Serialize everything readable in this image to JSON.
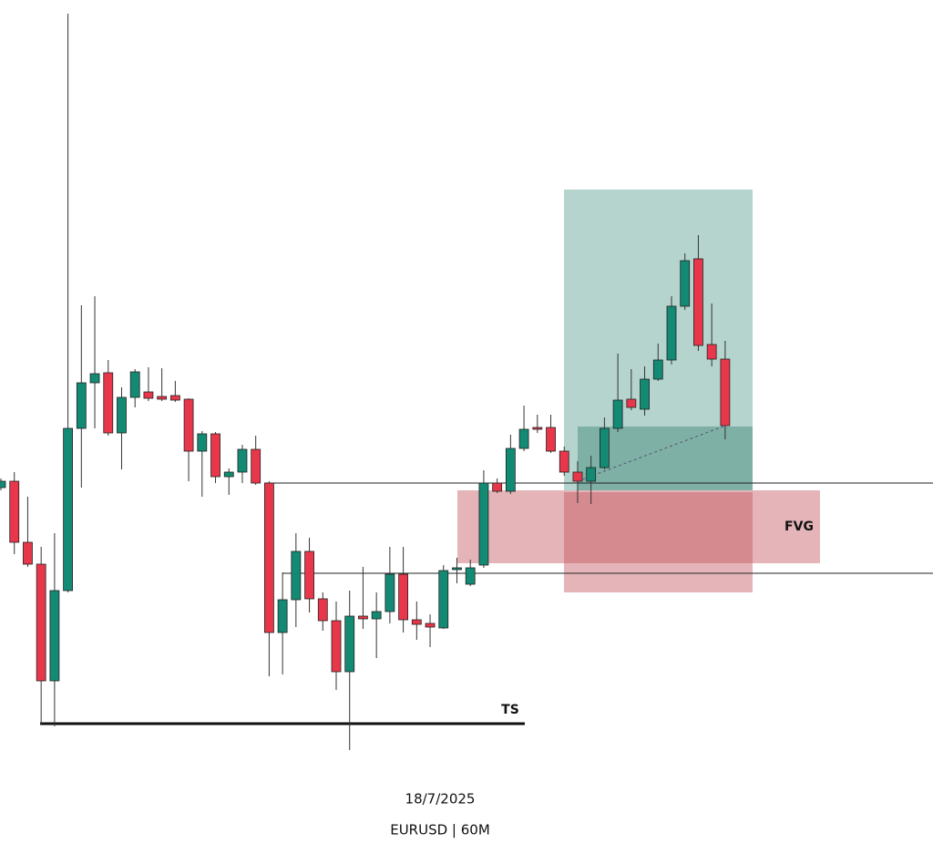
{
  "chart_data": {
    "type": "candlestick",
    "date": "18/7/2025",
    "caption": "EURUSD | 60M",
    "annotations": [
      "TS",
      "FVG"
    ],
    "ylim": [
      0,
      937
    ],
    "up_color": "#138a73",
    "down_color": "#e8374b",
    "open": [
      402,
      409,
      342,
      318,
      190,
      289,
      467,
      517,
      528,
      462,
      501,
      507,
      502,
      503,
      499,
      442,
      461,
      414,
      419,
      444,
      407,
      243,
      279,
      332,
      280,
      256,
      200,
      261,
      258,
      266,
      307,
      257,
      253,
      248,
      312,
      296,
      317,
      407,
      398,
      445,
      468,
      468,
      442,
      419,
      409,
      424,
      467,
      499,
      488,
      521,
      542,
      601,
      653,
      559,
      543
    ],
    "high": [
      412,
      419,
      392,
      337,
      352,
      922,
      602,
      612,
      542,
      512,
      532,
      534,
      533,
      519,
      500,
      464,
      463,
      423,
      449,
      459,
      409,
      309,
      352,
      347,
      287,
      277,
      289,
      315,
      287,
      337,
      337,
      277,
      263,
      317,
      325,
      323,
      421,
      412,
      460,
      492,
      482,
      482,
      447,
      431,
      437,
      479,
      549,
      532,
      535,
      560,
      612,
      659,
      679,
      604,
      563
    ],
    "low": [
      399,
      329,
      315,
      142,
      140,
      287,
      402,
      467,
      459,
      422,
      490,
      497,
      497,
      496,
      409,
      392,
      407,
      394,
      407,
      405,
      195,
      197,
      249,
      265,
      245,
      180,
      114,
      247,
      215,
      253,
      243,
      235,
      227,
      247,
      297,
      294,
      314,
      396,
      395,
      442,
      462,
      440,
      415,
      385,
      384,
      422,
      463,
      487,
      481,
      519,
      537,
      597,
      552,
      535,
      455
    ],
    "close": [
      409,
      342,
      318,
      190,
      289,
      467,
      517,
      527,
      462,
      501,
      529,
      500,
      499,
      498,
      442,
      461,
      414,
      419,
      444,
      407,
      243,
      279,
      332,
      280,
      256,
      200,
      261,
      258,
      266,
      307,
      257,
      252,
      249,
      311,
      314,
      314,
      407,
      398,
      445,
      466,
      466,
      442,
      419,
      409,
      424,
      467,
      498,
      490,
      521,
      542,
      601,
      651,
      558,
      543,
      470
    ]
  }
}
